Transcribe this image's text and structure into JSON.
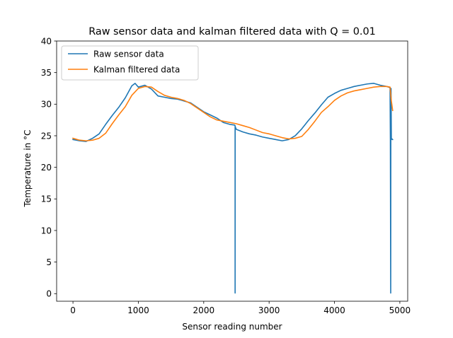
{
  "chart_data": {
    "type": "line",
    "title": "Raw sensor data and kalman filtered data with Q = 0.01",
    "xlabel": "Sensor reading number",
    "ylabel": "Temperature in °C",
    "xlim": [
      -250,
      5120
    ],
    "ylim": [
      -1.2,
      40
    ],
    "xticks": [
      0,
      1000,
      2000,
      3000,
      4000,
      5000
    ],
    "yticks": [
      0,
      5,
      10,
      15,
      20,
      25,
      30,
      35,
      40
    ],
    "grid": false,
    "legend_position": "top-left",
    "series": [
      {
        "name": "Raw sensor data",
        "color": "#1f77b4",
        "x": [
          0,
          100,
          200,
          300,
          400,
          500,
          600,
          700,
          800,
          900,
          950,
          1000,
          1100,
          1200,
          1300,
          1400,
          1500,
          1600,
          1700,
          1800,
          1900,
          2000,
          2100,
          2200,
          2300,
          2400,
          2470,
          2480,
          2480,
          2481,
          2490,
          2500,
          2600,
          2700,
          2800,
          2900,
          3000,
          3100,
          3200,
          3300,
          3400,
          3500,
          3600,
          3700,
          3800,
          3900,
          4000,
          4100,
          4200,
          4300,
          4400,
          4500,
          4600,
          4700,
          4800,
          4830,
          4850,
          4855,
          4860,
          4862,
          4865,
          4870,
          4880,
          4890
        ],
        "y": [
          24.4,
          24.2,
          24.1,
          24.6,
          25.3,
          26.8,
          28.2,
          29.5,
          31.0,
          32.9,
          33.3,
          32.7,
          33.0,
          32.4,
          31.3,
          31.1,
          30.9,
          30.8,
          30.5,
          30.2,
          29.5,
          28.8,
          28.3,
          27.8,
          27.1,
          26.8,
          26.7,
          26.6,
          0.1,
          26.5,
          26.2,
          26.0,
          25.6,
          25.3,
          25.1,
          24.8,
          24.6,
          24.4,
          24.2,
          24.4,
          25.0,
          26.1,
          27.4,
          28.6,
          29.9,
          31.1,
          31.7,
          32.2,
          32.5,
          32.8,
          33.0,
          33.2,
          33.3,
          33.0,
          32.8,
          32.7,
          32.6,
          24.5,
          0.1,
          28.6,
          32.5,
          24.4,
          24.5,
          24.4
        ]
      },
      {
        "name": "Kalman filtered data",
        "color": "#ff7f0e",
        "x": [
          0,
          100,
          200,
          300,
          400,
          500,
          600,
          700,
          800,
          900,
          1000,
          1100,
          1200,
          1300,
          1400,
          1500,
          1600,
          1700,
          1800,
          1900,
          2000,
          2100,
          2200,
          2300,
          2400,
          2500,
          2600,
          2700,
          2800,
          2900,
          3000,
          3100,
          3200,
          3300,
          3400,
          3500,
          3600,
          3700,
          3800,
          3900,
          4000,
          4100,
          4200,
          4300,
          4400,
          4500,
          4600,
          4700,
          4800,
          4850,
          4870,
          4890
        ],
        "y": [
          24.6,
          24.3,
          24.2,
          24.3,
          24.6,
          25.4,
          26.9,
          28.3,
          29.6,
          31.4,
          32.5,
          32.8,
          32.7,
          32.0,
          31.4,
          31.1,
          30.9,
          30.6,
          30.1,
          29.4,
          28.7,
          28.0,
          27.5,
          27.3,
          27.1,
          26.9,
          26.6,
          26.3,
          25.9,
          25.5,
          25.3,
          25.0,
          24.7,
          24.5,
          24.6,
          24.9,
          26.0,
          27.3,
          28.7,
          29.6,
          30.6,
          31.3,
          31.8,
          32.1,
          32.3,
          32.5,
          32.7,
          32.8,
          32.8,
          32.7,
          30.5,
          29.0
        ]
      }
    ]
  }
}
